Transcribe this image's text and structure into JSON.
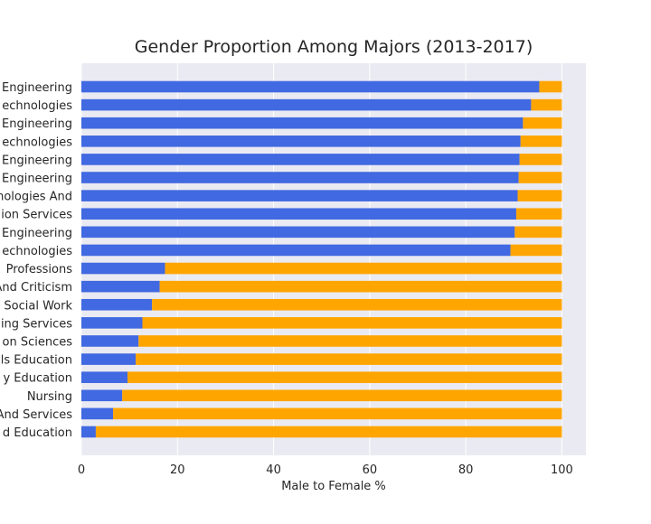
{
  "colors": {
    "male": "#4169e1",
    "female": "#ffa500",
    "plot_bg": "#eaeaf2",
    "grid": "#ffffff"
  },
  "chart_data": {
    "type": "bar",
    "orientation": "horizontal",
    "stacked": true,
    "title": "Gender Proportion Among Majors (2013-2017)",
    "xlabel": "Male to Female %",
    "ylabel": "",
    "xlim": [
      0,
      105
    ],
    "xticks": [
      "0",
      "20",
      "40",
      "60",
      "80",
      "100"
    ],
    "grid": true,
    "categories": [
      "Engineering",
      "echnologies",
      "Engineering",
      "echnologies",
      "Engineering",
      "Engineering",
      "nologies And",
      "ion Services",
      "Engineering",
      "echnologies",
      "Professions",
      "And Criticism",
      "Social Work",
      "ing Services",
      "on Sciences",
      "ls Education",
      "y Education",
      "Nursing",
      "And Services",
      "d Education"
    ],
    "series": [
      {
        "values": [
          95.3,
          93.6,
          91.9,
          91.4,
          91.2,
          91.0,
          90.8,
          90.5,
          90.2,
          89.3,
          17.4,
          16.3,
          14.7,
          12.7,
          11.9,
          11.3,
          9.6,
          8.5,
          6.6,
          3.0
        ]
      },
      {
        "values": [
          4.7,
          6.4,
          8.1,
          8.6,
          8.8,
          9.0,
          9.2,
          9.5,
          9.8,
          10.7,
          82.6,
          83.7,
          85.3,
          87.3,
          88.1,
          88.7,
          90.4,
          91.5,
          93.4,
          97.0
        ]
      }
    ]
  }
}
